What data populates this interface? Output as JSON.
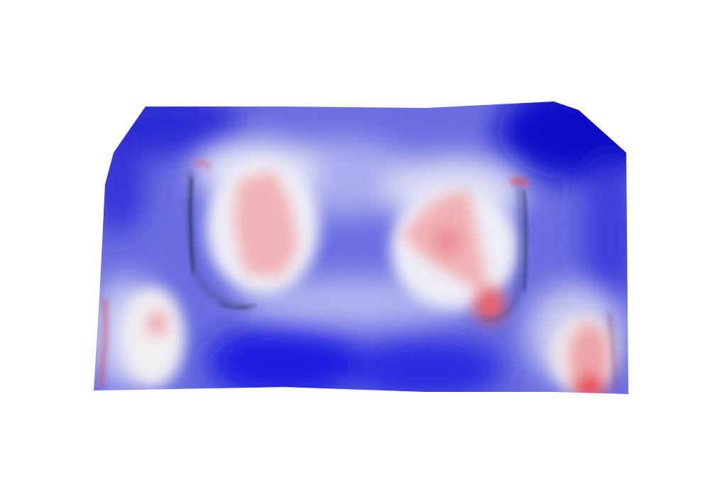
{
  "scene": {
    "background": "#ffffff",
    "colormap": {
      "low": "#0000cc",
      "mid": "#ececf4",
      "high": "#e83c46"
    },
    "shading": "diverging-blue-white-red",
    "subject": "surface-mesh-scalar-field"
  }
}
